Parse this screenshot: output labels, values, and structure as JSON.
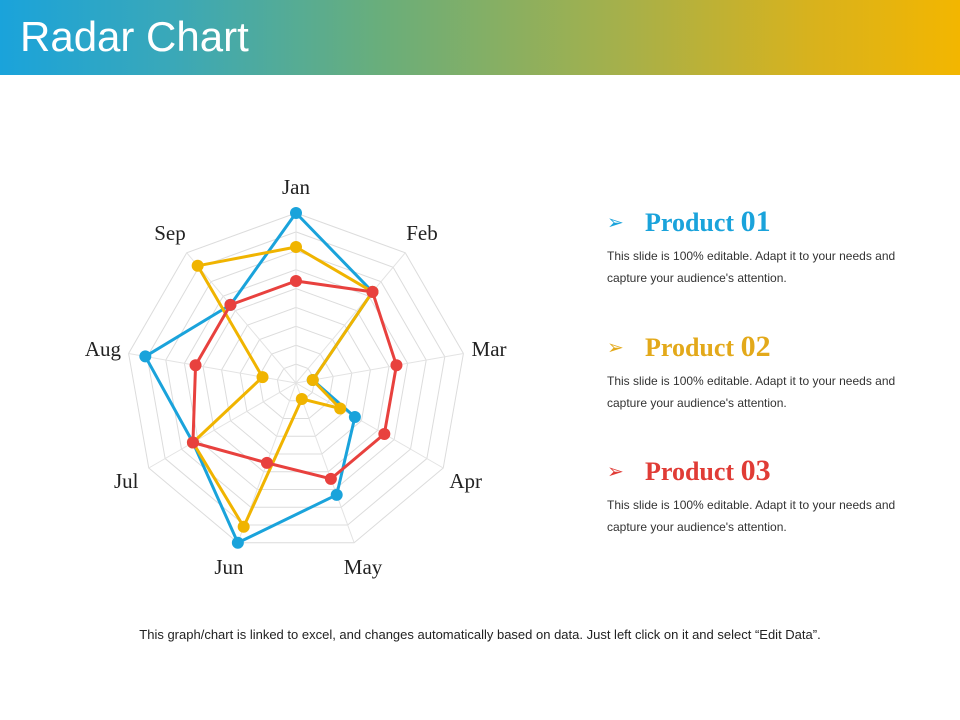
{
  "header": {
    "title": "Radar Chart"
  },
  "chart_data": {
    "type": "radar",
    "categories": [
      "Jan",
      "Feb",
      "Mar",
      "Apr",
      "May",
      "Jun",
      "Jul",
      "Aug",
      "Sep"
    ],
    "rlim": [
      0,
      10
    ],
    "grid": true,
    "series": [
      {
        "name": "Product 01",
        "color": "#1aa3db",
        "values": [
          10,
          7,
          1,
          4,
          7,
          10,
          7,
          9,
          6
        ]
      },
      {
        "name": "Product 02",
        "color": "#f0b400",
        "values": [
          8,
          7,
          1,
          3,
          1,
          9,
          7,
          2,
          9
        ]
      },
      {
        "name": "Product 03",
        "color": "#e8413e",
        "values": [
          6,
          7,
          6,
          6,
          6,
          5,
          7,
          6,
          6
        ]
      }
    ]
  },
  "legend": [
    {
      "name": "Product",
      "num": "01",
      "color": "#1aa3db",
      "desc_line1": "This slide is 100% editable. Adapt it to your needs and",
      "desc_line2": "capture your audience's attention."
    },
    {
      "name": "Product",
      "num": "02",
      "color": "#e3a91a",
      "desc_line1": "This slide is 100% editable. Adapt it to your needs and",
      "desc_line2": "capture your audience's attention."
    },
    {
      "name": "Product",
      "num": "03",
      "color": "#e03c36",
      "desc_line1": "This slide is 100% editable. Adapt it to your needs and",
      "desc_line2": "capture your audience's attention."
    }
  ],
  "footer": {
    "text": "This graph/chart is linked to excel, and changes automatically based on data. Just left click on it and select “Edit Data”."
  }
}
